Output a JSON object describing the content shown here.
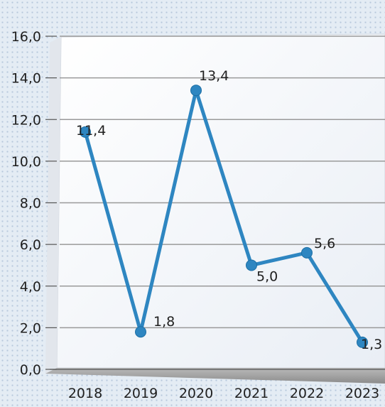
{
  "chart_data": {
    "type": "line",
    "title": "",
    "xlabel": "",
    "ylabel": "",
    "categories": [
      "2018",
      "2019",
      "2020",
      "2021",
      "2022",
      "2023"
    ],
    "series": [
      {
        "values": [
          11.4,
          1.8,
          13.4,
          5.0,
          5.6,
          1.3
        ],
        "value_labels": [
          "11,4",
          "1,8",
          "13,4",
          "5,0",
          "5,6",
          "1,3"
        ],
        "color": "#2e86c1"
      }
    ],
    "ylim": [
      0,
      16
    ],
    "y_ticks": [
      0,
      2,
      4,
      6,
      8,
      10,
      12,
      14,
      16
    ],
    "y_tick_labels": [
      "0,0",
      "2,0",
      "4,0",
      "6,0",
      "8,0",
      "10,0",
      "12,0",
      "14,0",
      "16,0"
    ],
    "grid": true,
    "legend": "none"
  }
}
